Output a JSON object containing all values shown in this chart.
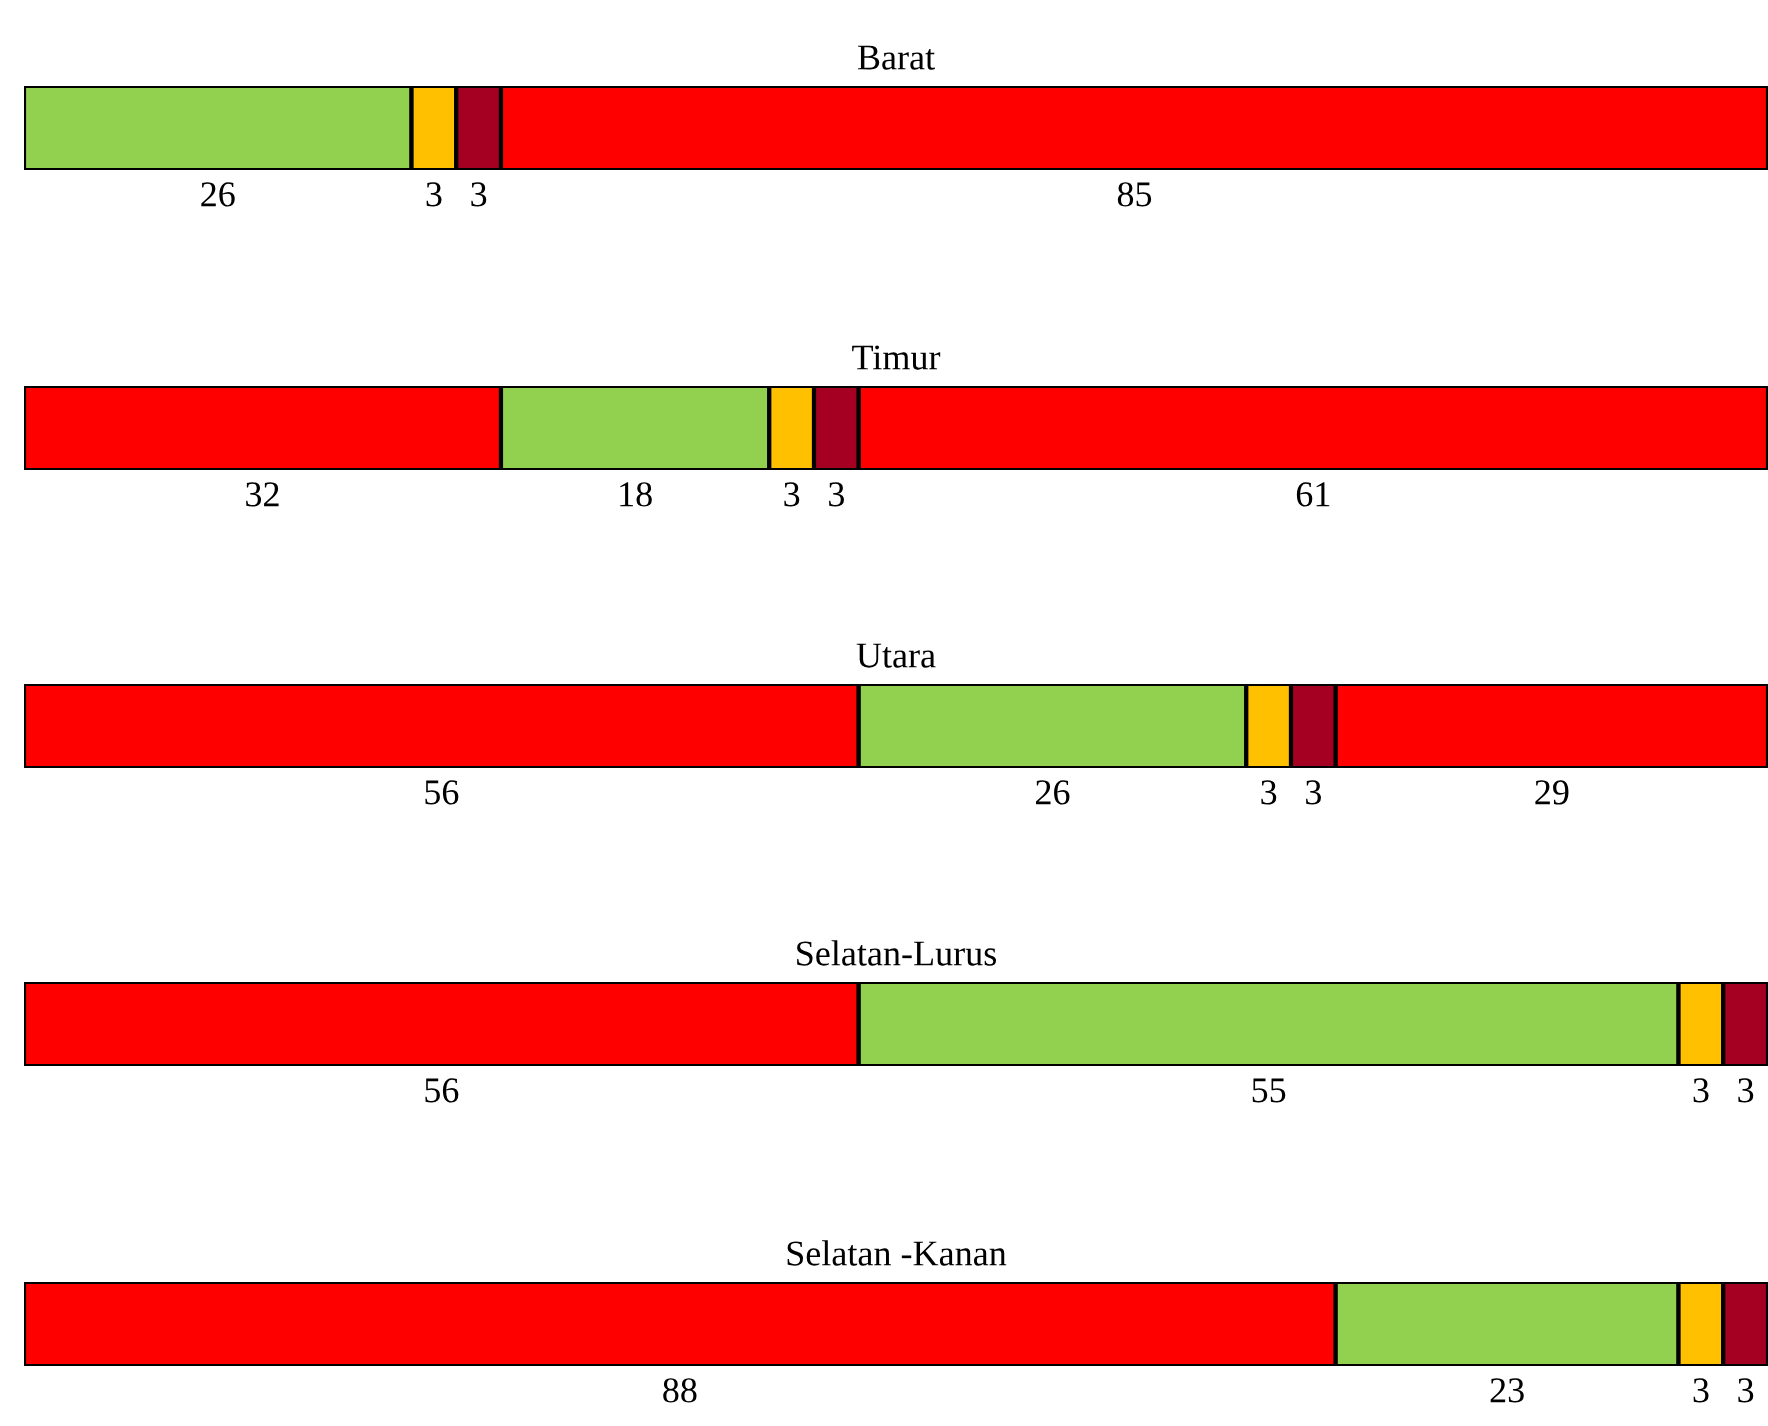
{
  "chart_data": [
    {
      "type": "bar",
      "orientation": "horizontal",
      "stacked": true,
      "title": "Barat",
      "categories": [
        null
      ],
      "data_labels": true,
      "series": [
        {
          "color": "#92d050",
          "values": [
            26
          ]
        },
        {
          "color": "#ffc000",
          "values": [
            3
          ]
        },
        {
          "color": "#a50021",
          "values": [
            3
          ]
        },
        {
          "color": "#ff0000",
          "values": [
            85
          ]
        }
      ]
    },
    {
      "type": "bar",
      "orientation": "horizontal",
      "stacked": true,
      "title": "Timur",
      "categories": [
        null
      ],
      "data_labels": true,
      "series": [
        {
          "color": "#ff0000",
          "values": [
            32
          ]
        },
        {
          "color": "#92d050",
          "values": [
            18
          ]
        },
        {
          "color": "#ffc000",
          "values": [
            3
          ]
        },
        {
          "color": "#a50021",
          "values": [
            3
          ]
        },
        {
          "color": "#ff0000",
          "values": [
            61
          ]
        }
      ]
    },
    {
      "type": "bar",
      "orientation": "horizontal",
      "stacked": true,
      "title": "Utara",
      "categories": [
        null
      ],
      "data_labels": true,
      "series": [
        {
          "color": "#ff0000",
          "values": [
            56
          ]
        },
        {
          "color": "#92d050",
          "values": [
            26
          ]
        },
        {
          "color": "#ffc000",
          "values": [
            3
          ]
        },
        {
          "color": "#a50021",
          "values": [
            3
          ]
        },
        {
          "color": "#ff0000",
          "values": [
            29
          ]
        }
      ]
    },
    {
      "type": "bar",
      "orientation": "horizontal",
      "stacked": true,
      "title": "Selatan-Lurus",
      "categories": [
        null
      ],
      "data_labels": true,
      "series": [
        {
          "color": "#ff0000",
          "values": [
            56
          ]
        },
        {
          "color": "#92d050",
          "values": [
            55
          ]
        },
        {
          "color": "#ffc000",
          "values": [
            3
          ]
        },
        {
          "color": "#a50021",
          "values": [
            3
          ]
        }
      ]
    },
    {
      "type": "bar",
      "orientation": "horizontal",
      "stacked": true,
      "title": "Selatan -Kanan",
      "categories": [
        null
      ],
      "data_labels": true,
      "series": [
        {
          "color": "#ff0000",
          "values": [
            88
          ]
        },
        {
          "color": "#92d050",
          "values": [
            23
          ]
        },
        {
          "color": "#ffc000",
          "values": [
            3
          ]
        },
        {
          "color": "#a50021",
          "values": [
            3
          ]
        }
      ]
    }
  ]
}
